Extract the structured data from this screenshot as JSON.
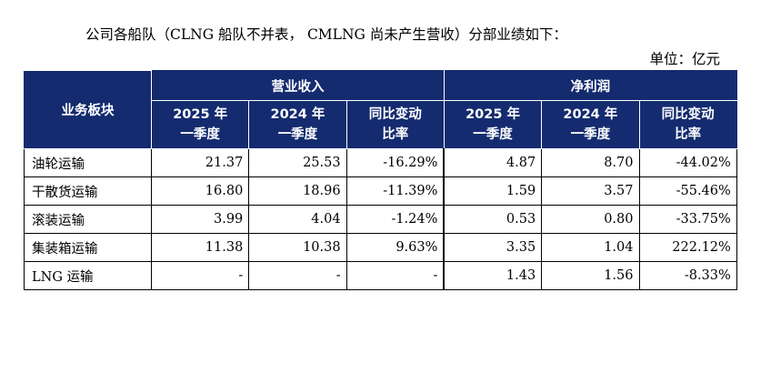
{
  "intro_text": "公司各船队（CLNG 船队不并表， CMLNG 尚未产生营收）分部业绩如下：",
  "unit_text": "单位：亿元",
  "table": {
    "corner_header": "业务板块",
    "group_headers": [
      "营业收入",
      "净利润"
    ],
    "sub_headers": [
      {
        "line1": "2025 年",
        "line2": "一季度"
      },
      {
        "line1": "2024 年",
        "line2": "一季度"
      },
      {
        "line1": "同比变动",
        "line2": "比率"
      },
      {
        "line1": "2025 年",
        "line2": "一季度"
      },
      {
        "line1": "2024 年",
        "line2": "一季度"
      },
      {
        "line1": "同比变动",
        "line2": "比率"
      }
    ],
    "rows": [
      {
        "name": "油轮运输",
        "values": [
          "21.37",
          "25.53",
          "-16.29%",
          "4.87",
          "8.70",
          "-44.02%"
        ]
      },
      {
        "name": "干散货运输",
        "values": [
          "16.80",
          "18.96",
          "-11.39%",
          "1.59",
          "3.57",
          "-55.46%"
        ]
      },
      {
        "name": "滚装运输",
        "values": [
          "3.99",
          "4.04",
          "-1.24%",
          "0.53",
          "0.80",
          "-33.75%"
        ]
      },
      {
        "name": "集装箱运输",
        "values": [
          "11.38",
          "10.38",
          "9.63%",
          "3.35",
          "1.04",
          "222.12%"
        ]
      },
      {
        "name": "LNG 运输",
        "values": [
          "-",
          "-",
          "-",
          "1.43",
          "1.56",
          "-8.33%"
        ]
      }
    ]
  },
  "colors": {
    "header_bg": "#142b6f",
    "header_text": "#ffffff"
  }
}
